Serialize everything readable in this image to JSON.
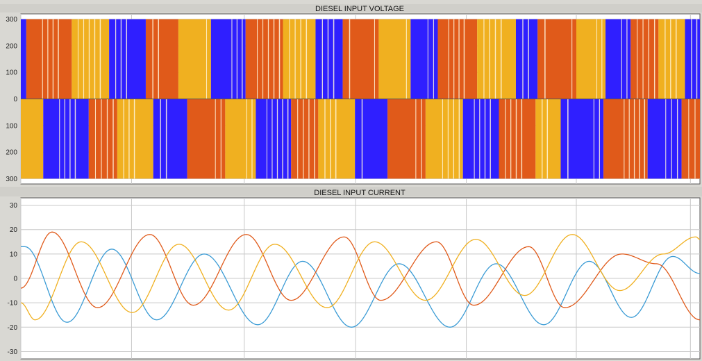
{
  "chart_data": [
    {
      "type": "line",
      "title": "DIESEL INPUT VOLTAGE",
      "xlabel": "",
      "ylabel": "",
      "ylim": [
        -320,
        320
      ],
      "xlim": [
        0,
        1
      ],
      "y_ticks": [
        300,
        200,
        100,
        0,
        -100,
        -200,
        -300
      ],
      "y_tick_labels": [
        "300",
        "200",
        "100",
        "0",
        "100",
        "200",
        "300"
      ],
      "grid": true,
      "legend": "none",
      "series": [
        {
          "color": "#2f1fff",
          "description_values": "PWM pulses switching between +300 and -300"
        },
        {
          "color": "#e05a1a",
          "description_values": "PWM pulses switching between +300 and -300"
        },
        {
          "color": "#f0b020",
          "description_values": "PWM pulses switching between +300 and -300"
        }
      ],
      "pulse_amplitude": 300,
      "positive_segments": [
        [
          0.0,
          0.008,
          "#2f1fff"
        ],
        [
          0.008,
          0.075,
          "#e05a1a"
        ],
        [
          0.075,
          0.13,
          "#f0b020"
        ],
        [
          0.13,
          0.184,
          "#2f1fff"
        ],
        [
          0.184,
          0.232,
          "#e05a1a"
        ],
        [
          0.232,
          0.28,
          "#f0b020"
        ],
        [
          0.28,
          0.331,
          "#2f1fff"
        ],
        [
          0.331,
          0.386,
          "#e05a1a"
        ],
        [
          0.386,
          0.434,
          "#f0b020"
        ],
        [
          0.434,
          0.474,
          "#2f1fff"
        ],
        [
          0.474,
          0.527,
          "#e05a1a"
        ],
        [
          0.527,
          0.574,
          "#f0b020"
        ],
        [
          0.574,
          0.614,
          "#2f1fff"
        ],
        [
          0.614,
          0.672,
          "#e05a1a"
        ],
        [
          0.672,
          0.729,
          "#f0b020"
        ],
        [
          0.729,
          0.761,
          "#2f1fff"
        ],
        [
          0.761,
          0.818,
          "#e05a1a"
        ],
        [
          0.818,
          0.861,
          "#f0b020"
        ],
        [
          0.861,
          0.898,
          "#2f1fff"
        ],
        [
          0.898,
          0.939,
          "#e05a1a"
        ],
        [
          0.939,
          0.978,
          "#f0b020"
        ],
        [
          0.978,
          1.0,
          "#2f1fff"
        ]
      ],
      "negative_segments": [
        [
          0.0,
          0.033,
          "#f0b020"
        ],
        [
          0.033,
          0.1,
          "#2f1fff"
        ],
        [
          0.1,
          0.142,
          "#e05a1a"
        ],
        [
          0.142,
          0.195,
          "#f0b020"
        ],
        [
          0.195,
          0.245,
          "#2f1fff"
        ],
        [
          0.245,
          0.301,
          "#e05a1a"
        ],
        [
          0.301,
          0.346,
          "#f0b020"
        ],
        [
          0.346,
          0.398,
          "#2f1fff"
        ],
        [
          0.398,
          0.438,
          "#e05a1a"
        ],
        [
          0.438,
          0.492,
          "#f0b020"
        ],
        [
          0.492,
          0.54,
          "#2f1fff"
        ],
        [
          0.54,
          0.596,
          "#e05a1a"
        ],
        [
          0.596,
          0.651,
          "#f0b020"
        ],
        [
          0.651,
          0.704,
          "#2f1fff"
        ],
        [
          0.704,
          0.758,
          "#e05a1a"
        ],
        [
          0.758,
          0.795,
          "#f0b020"
        ],
        [
          0.795,
          0.858,
          "#2f1fff"
        ],
        [
          0.858,
          0.923,
          "#e05a1a"
        ],
        [
          0.923,
          0.973,
          "#2f1fff"
        ],
        [
          0.973,
          1.0,
          "#e05a1a"
        ]
      ],
      "x_tick_positions": [
        0.0,
        0.163,
        0.329,
        0.493,
        0.656,
        0.818,
        0.986
      ],
      "x_tick_labels": [
        "",
        "",
        "",
        "",
        "",
        "",
        ""
      ]
    },
    {
      "type": "line",
      "title": "DIESEL INPUT CURRENT",
      "xlabel": "",
      "ylabel": "",
      "ylim": [
        -33,
        33
      ],
      "xlim": [
        0,
        1
      ],
      "y_ticks": [
        30,
        20,
        10,
        0,
        -10,
        -20,
        -30
      ],
      "y_tick_labels": [
        "30",
        "20",
        "10",
        "0",
        "-10",
        "-20",
        "-30"
      ],
      "grid": true,
      "legend": "none",
      "x_tick_positions": [
        0.0,
        0.163,
        0.329,
        0.493,
        0.656,
        0.818,
        0.986
      ],
      "x_tick_labels": [
        "",
        "",
        "",
        "",
        "",
        "",
        ""
      ],
      "series": [
        {
          "color": "#3a9bd5",
          "x": [
            0.0,
            0.006,
            0.068,
            0.134,
            0.2,
            0.27,
            0.349,
            0.415,
            0.487,
            0.557,
            0.632,
            0.7,
            0.77,
            0.837,
            0.899,
            0.96,
            1.0
          ],
          "y": [
            13,
            13,
            -18,
            12,
            -17,
            10,
            -19,
            7,
            -20,
            6,
            -20,
            6,
            -19,
            7,
            -16,
            9,
            2
          ]
        },
        {
          "color": "#e05a1a",
          "x": [
            0.0,
            0.046,
            0.113,
            0.19,
            0.254,
            0.332,
            0.398,
            0.476,
            0.53,
            0.612,
            0.667,
            0.748,
            0.801,
            0.885,
            0.936,
            1.0
          ],
          "y": [
            -4,
            19,
            -12,
            18,
            -11,
            18,
            -9,
            17,
            -9,
            15,
            -11,
            13,
            -12,
            10,
            6,
            -17
          ]
        },
        {
          "color": "#f0b020",
          "x": [
            0.0,
            0.021,
            0.089,
            0.164,
            0.233,
            0.306,
            0.374,
            0.451,
            0.521,
            0.596,
            0.67,
            0.742,
            0.812,
            0.882,
            0.946,
            0.994,
            1.0
          ],
          "y": [
            -10,
            -17,
            15,
            -14,
            14,
            -13,
            14,
            -12,
            15,
            -9,
            16,
            -7,
            18,
            -5,
            10,
            17,
            16
          ]
        }
      ]
    }
  ]
}
